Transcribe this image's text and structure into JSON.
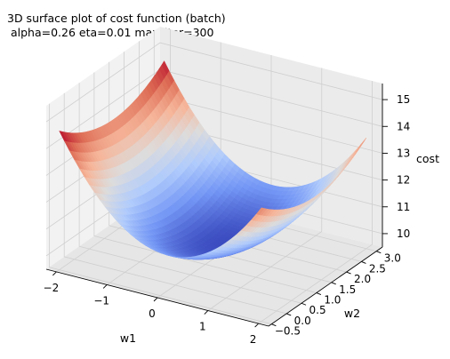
{
  "chart_data": {
    "type": "surface",
    "title_line1": "3D surface plot of cost function (batch)",
    "title_line2": " alpha=0.26 eta=0.01 max_iter=300",
    "xlabel": "w1",
    "ylabel": "w2",
    "zlabel": "cost",
    "xlim": [
      -2.2,
      2.2
    ],
    "ylim": [
      -0.6,
      3.2
    ],
    "zlim": [
      9.5,
      15.6
    ],
    "xticks": [
      -2,
      -1,
      0,
      1,
      2
    ],
    "xtick_labels": [
      "−2",
      "−1",
      "0",
      "1",
      "2"
    ],
    "yticks": [
      -0.5,
      0.0,
      0.5,
      1.0,
      1.5,
      2.0,
      2.5,
      3.0
    ],
    "ytick_labels": [
      "−0.5",
      "0.0",
      "0.5",
      "1.0",
      "1.5",
      "2.0",
      "2.5",
      "3.0"
    ],
    "zticks": [
      10,
      11,
      12,
      13,
      14,
      15
    ],
    "ztick_labels": [
      "10",
      "11",
      "12",
      "13",
      "14",
      "15"
    ],
    "surface": {
      "x_range": [
        -2.0,
        2.0
      ],
      "y_range": [
        -0.5,
        3.0
      ],
      "grid": 40,
      "model": "cost = a*(w1-b)^2 + c*(w2-d)^2 + e",
      "a": 0.78,
      "b": 0.15,
      "c": 0.3,
      "d": 1.3,
      "e": 10.1
    },
    "colormap": "coolwarm",
    "colormap_stops": [
      "#3b4cc0",
      "#7396f5",
      "#b0cbfc",
      "#dddcdc",
      "#f6b69a",
      "#de6e56",
      "#b40426"
    ],
    "grid": true
  }
}
